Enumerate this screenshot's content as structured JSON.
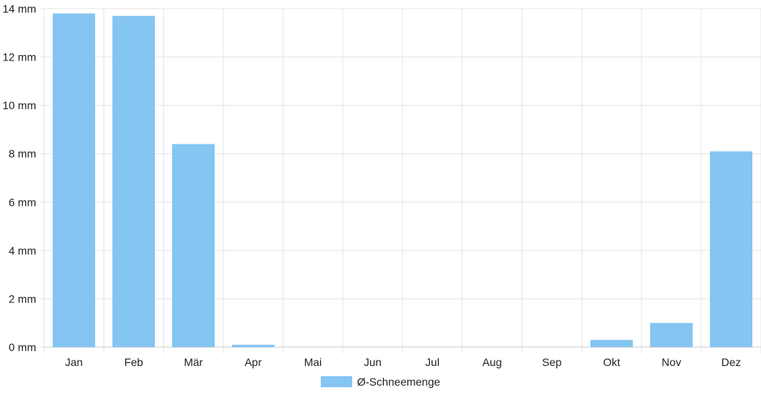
{
  "chart_data": {
    "type": "bar",
    "categories": [
      "Jan",
      "Feb",
      "Mär",
      "Apr",
      "Mai",
      "Jun",
      "Jul",
      "Aug",
      "Sep",
      "Okt",
      "Nov",
      "Dez"
    ],
    "series": [
      {
        "name": "Ø-Schneemenge",
        "values": [
          13.8,
          13.7,
          8.4,
          0.1,
          0,
          0,
          0,
          0,
          0,
          0.3,
          1.0,
          8.1
        ]
      }
    ],
    "y_ticks": [
      "0 mm",
      "2 mm",
      "4 mm",
      "6 mm",
      "8 mm",
      "10 mm",
      "12 mm",
      "14 mm"
    ],
    "ylim": [
      0,
      14
    ],
    "grid": true,
    "legend_position": "bottom",
    "bar_color": "#85c5f2",
    "grid_color": "#e5e5e5"
  }
}
